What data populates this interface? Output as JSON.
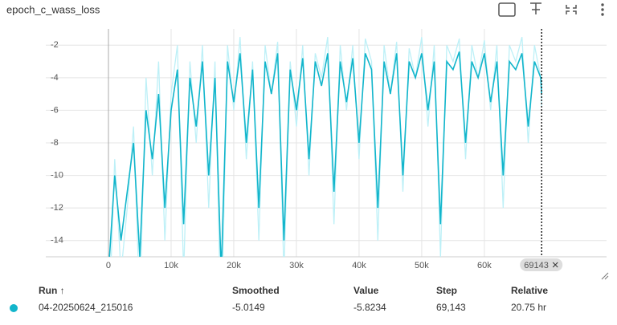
{
  "chart_data": {
    "type": "line",
    "title": "epoch_c_wass_loss",
    "x": [
      0,
      1000,
      2000,
      3000,
      4000,
      5000,
      6000,
      7000,
      8000,
      9000,
      10000,
      11000,
      12000,
      13000,
      14000,
      15000,
      16000,
      17000,
      18000,
      19000,
      20000,
      21000,
      22000,
      23000,
      24000,
      25000,
      26000,
      27000,
      28000,
      29000,
      30000,
      31000,
      32000,
      33000,
      34000,
      35000,
      36000,
      37000,
      38000,
      39000,
      40000,
      41000,
      42000,
      43000,
      44000,
      45000,
      46000,
      47000,
      48000,
      49000,
      50000,
      51000,
      52000,
      53000,
      54000,
      55000,
      56000,
      57000,
      58000,
      59000,
      60000,
      61000,
      62000,
      63000,
      64000,
      65000,
      66000,
      67000,
      68000,
      69000,
      69143
    ],
    "series": [
      {
        "name": "Value",
        "color": "#bdf0f7",
        "values": [
          -20,
          -9,
          -16,
          -12,
          -7,
          -18,
          -4,
          -10,
          -3,
          -14,
          -5,
          -2,
          -16,
          -3,
          -8,
          -2,
          -12,
          -3,
          -20,
          -2,
          -6,
          -1.5,
          -9,
          -3,
          -14,
          -2,
          -5,
          -1.8,
          -16,
          -3,
          -7,
          -2,
          -10,
          -2.5,
          -4,
          -1.5,
          -13,
          -2,
          -6,
          -2,
          -9,
          -1.6,
          -3,
          -14,
          -2,
          -5,
          -1.8,
          -11,
          -2.2,
          -4,
          -1.5,
          -7,
          -2,
          -15,
          -2,
          -3,
          -1.6,
          -9,
          -2,
          -4,
          -1.7,
          -6,
          -2,
          -12,
          -2,
          -3,
          -1.5,
          -8,
          -2,
          -4,
          -5.8234
        ]
      },
      {
        "name": "Smoothed",
        "color": "#12b5cb",
        "values": [
          -16,
          -10,
          -14,
          -11,
          -8,
          -15,
          -6,
          -9,
          -5,
          -12,
          -6,
          -3.5,
          -13,
          -4,
          -7,
          -3,
          -10,
          -4,
          -16,
          -3,
          -5.5,
          -2.5,
          -8,
          -3.5,
          -12,
          -3,
          -5,
          -2.5,
          -14,
          -3.5,
          -6,
          -2.8,
          -9,
          -3,
          -4.5,
          -2.5,
          -11,
          -3,
          -5.5,
          -2.8,
          -8,
          -2.5,
          -3.5,
          -12,
          -3,
          -5,
          -2.5,
          -10,
          -3,
          -4,
          -2.5,
          -6,
          -3,
          -13,
          -3,
          -3.5,
          -2.4,
          -8,
          -3,
          -4,
          -2.5,
          -5.5,
          -3,
          -10,
          -3,
          -3.5,
          -2.5,
          -7,
          -3,
          -4,
          -5.0149
        ]
      }
    ],
    "xlim": [
      -10000,
      79500
    ],
    "ylim": [
      -15,
      -1
    ],
    "xticks": [
      0,
      {
        "value": 10000,
        "label": "10k"
      },
      {
        "value": 20000,
        "label": "20k"
      },
      {
        "value": 30000,
        "label": "30k"
      },
      {
        "value": 40000,
        "label": "40k"
      },
      {
        "value": 50000,
        "label": "50k"
      },
      {
        "value": 60000,
        "label": "60k"
      }
    ],
    "yticks": [
      -2,
      -4,
      -6,
      -8,
      -10,
      -12,
      -14
    ],
    "grid": true,
    "cursor": {
      "value": 69143,
      "label": "69143"
    }
  },
  "table": {
    "columns": [
      "Run ↑",
      "Smoothed",
      "Value",
      "Step",
      "Relative"
    ],
    "rows": [
      [
        "04-20250624_215016",
        "-5.0149",
        "-5.8234",
        "69,143",
        "20.75 hr"
      ]
    ],
    "color": "#12b5cb"
  }
}
